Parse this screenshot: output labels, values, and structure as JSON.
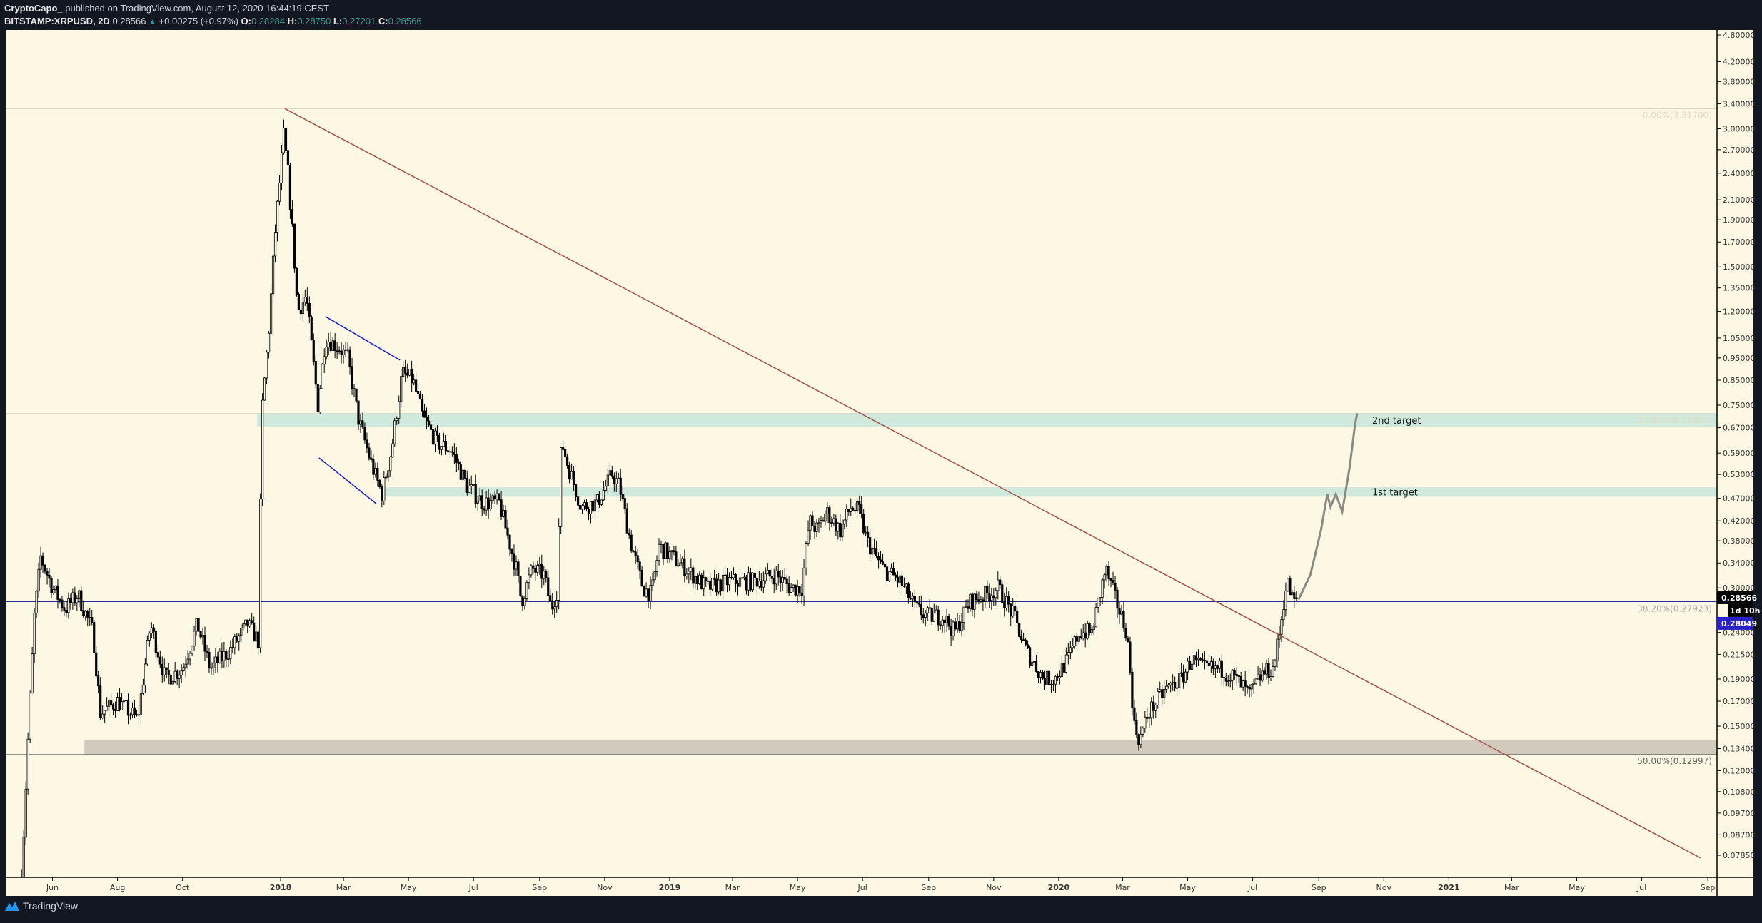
{
  "header": {
    "author": "CryptoCapo_",
    "published": " published on TradingView.com, August 12, 2020 16:44:19 CEST",
    "symbol": "BITSTAMP:XRPUSD, 2D",
    "last": "0.28566",
    "change": "+0.00275 (+0.97%)",
    "o_label": "O:",
    "o": "0.28284",
    "h_label": "H:",
    "h": "0.28750",
    "l_label": "L:",
    "l": "0.27201",
    "c_label": "C:",
    "c": "0.28566",
    "change_icon": "triangle-up-icon"
  },
  "footer": {
    "brand": "TradingView",
    "logo_icon": "tradingview-logo-icon"
  },
  "colors": {
    "background": "#fdf8e4",
    "frame": "#131722",
    "candle_down": "#000000",
    "candle_up_fill": "#fdf8e4",
    "trendline": "#a0524a",
    "channel": "#1a1ad0",
    "support": "#2a2aa0",
    "target_zone": "#cfeadd",
    "support_zone": "#d2cbbd",
    "projection": "#8a8a84",
    "last_price_bg": "#000000",
    "line_price_bg": "#2a22c8"
  },
  "chart_data": {
    "type": "candlestick",
    "interval": "2D",
    "y_scale": "log",
    "ylim": [
      0.072,
      4.9
    ],
    "xlim": [
      "2017-04-27",
      "2021-09-12"
    ],
    "grid": false,
    "price_ticks": [
      4.8,
      4.2,
      3.8,
      3.4,
      3.0,
      2.7,
      2.4,
      2.1,
      1.9,
      1.7,
      1.5,
      1.35,
      1.2,
      1.05,
      0.95,
      0.85,
      0.75,
      0.67,
      0.59,
      0.53,
      0.47,
      0.42,
      0.38,
      0.34,
      0.3,
      0.24,
      0.215,
      0.19,
      0.17,
      0.15,
      0.134,
      0.12,
      0.108,
      0.097,
      0.087,
      0.0785
    ],
    "price_tick_labels": [
      "4.80000",
      "4.20000",
      "3.80000",
      "3.40000",
      "3.00000",
      "2.70000",
      "2.40000",
      "2.10000",
      "1.90000",
      "1.70000",
      "1.50000",
      "1.35000",
      "1.20000",
      "1.05000",
      "0.95000",
      "0.85000",
      "0.75000",
      "0.67000",
      "0.59000",
      "0.53000",
      "0.47000",
      "0.42000",
      "0.38000",
      "0.34000",
      "0.30000",
      "0.24000",
      "0.21500",
      "0.19000",
      "0.17000",
      "0.15000",
      "0.13400",
      "0.12000",
      "0.10800",
      "0.09700",
      "0.08700",
      "0.07850"
    ],
    "time_ticks": [
      {
        "date": "2017-06-01",
        "label": "Jun"
      },
      {
        "date": "2017-08-01",
        "label": "Aug"
      },
      {
        "date": "2017-10-01",
        "label": "Oct"
      },
      {
        "date": "2018-01-01",
        "label": "2018",
        "major": true
      },
      {
        "date": "2018-03-01",
        "label": "Mar"
      },
      {
        "date": "2018-05-01",
        "label": "May"
      },
      {
        "date": "2018-07-01",
        "label": "Jul"
      },
      {
        "date": "2018-09-01",
        "label": "Sep"
      },
      {
        "date": "2018-11-01",
        "label": "Nov"
      },
      {
        "date": "2019-01-01",
        "label": "2019",
        "major": true
      },
      {
        "date": "2019-03-01",
        "label": "Mar"
      },
      {
        "date": "2019-05-01",
        "label": "May"
      },
      {
        "date": "2019-07-01",
        "label": "Jul"
      },
      {
        "date": "2019-09-01",
        "label": "Sep"
      },
      {
        "date": "2019-11-01",
        "label": "Nov"
      },
      {
        "date": "2020-01-01",
        "label": "2020",
        "major": true
      },
      {
        "date": "2020-03-01",
        "label": "Mar"
      },
      {
        "date": "2020-05-01",
        "label": "May"
      },
      {
        "date": "2020-07-01",
        "label": "Jul"
      },
      {
        "date": "2020-09-01",
        "label": "Sep"
      },
      {
        "date": "2020-11-01",
        "label": "Nov"
      },
      {
        "date": "2021-01-01",
        "label": "2021",
        "major": true
      },
      {
        "date": "2021-03-01",
        "label": "Mar"
      },
      {
        "date": "2021-05-01",
        "label": "May"
      },
      {
        "date": "2021-07-01",
        "label": "Jul"
      },
      {
        "date": "2021-09-01",
        "label": "Sep"
      }
    ],
    "price_path": [
      [
        "2017-05-03",
        0.07
      ],
      [
        "2017-05-09",
        0.14
      ],
      [
        "2017-05-15",
        0.26
      ],
      [
        "2017-05-21",
        0.35
      ],
      [
        "2017-06-01",
        0.3
      ],
      [
        "2017-06-13",
        0.27
      ],
      [
        "2017-06-25",
        0.29
      ],
      [
        "2017-07-09",
        0.24
      ],
      [
        "2017-07-16",
        0.16
      ],
      [
        "2017-08-01",
        0.17
      ],
      [
        "2017-08-20",
        0.155
      ],
      [
        "2017-09-01",
        0.25
      ],
      [
        "2017-09-15",
        0.19
      ],
      [
        "2017-10-01",
        0.2
      ],
      [
        "2017-10-15",
        0.25
      ],
      [
        "2017-10-27",
        0.2
      ],
      [
        "2017-11-15",
        0.22
      ],
      [
        "2017-12-01",
        0.25
      ],
      [
        "2017-12-11",
        0.23
      ],
      [
        "2017-12-13",
        0.45
      ],
      [
        "2017-12-15",
        0.75
      ],
      [
        "2017-12-21",
        1.1
      ],
      [
        "2017-12-27",
        1.8
      ],
      [
        "2018-01-04",
        2.9
      ],
      [
        "2018-01-08",
        2.4
      ],
      [
        "2018-01-12",
        1.8
      ],
      [
        "2018-01-17",
        1.2
      ],
      [
        "2018-01-25",
        1.3
      ],
      [
        "2018-02-05",
        0.75
      ],
      [
        "2018-02-12",
        1.05
      ],
      [
        "2018-02-25",
        1.0
      ],
      [
        "2018-03-05",
        0.95
      ],
      [
        "2018-03-15",
        0.7
      ],
      [
        "2018-03-28",
        0.55
      ],
      [
        "2018-04-06",
        0.48
      ],
      [
        "2018-04-15",
        0.6
      ],
      [
        "2018-04-25",
        0.88
      ],
      [
        "2018-05-05",
        0.85
      ],
      [
        "2018-05-15",
        0.7
      ],
      [
        "2018-05-28",
        0.62
      ],
      [
        "2018-06-10",
        0.6
      ],
      [
        "2018-06-25",
        0.5
      ],
      [
        "2018-07-10",
        0.46
      ],
      [
        "2018-07-25",
        0.46
      ],
      [
        "2018-08-10",
        0.33
      ],
      [
        "2018-08-15",
        0.28
      ],
      [
        "2018-08-25",
        0.33
      ],
      [
        "2018-09-05",
        0.32
      ],
      [
        "2018-09-12",
        0.27
      ],
      [
        "2018-09-18",
        0.3
      ],
      [
        "2018-09-20",
        0.55
      ],
      [
        "2018-09-22",
        0.62
      ],
      [
        "2018-09-28",
        0.55
      ],
      [
        "2018-10-10",
        0.45
      ],
      [
        "2018-10-25",
        0.46
      ],
      [
        "2018-11-08",
        0.53
      ],
      [
        "2018-11-15",
        0.5
      ],
      [
        "2018-11-25",
        0.38
      ],
      [
        "2018-12-07",
        0.3
      ],
      [
        "2018-12-15",
        0.29
      ],
      [
        "2018-12-22",
        0.37
      ],
      [
        "2019-01-10",
        0.34
      ],
      [
        "2019-02-05",
        0.3
      ],
      [
        "2019-02-25",
        0.31
      ],
      [
        "2019-03-20",
        0.31
      ],
      [
        "2019-04-10",
        0.32
      ],
      [
        "2019-04-25",
        0.3
      ],
      [
        "2019-05-05",
        0.3
      ],
      [
        "2019-05-12",
        0.42
      ],
      [
        "2019-05-20",
        0.4
      ],
      [
        "2019-05-28",
        0.44
      ],
      [
        "2019-06-10",
        0.4
      ],
      [
        "2019-06-20",
        0.45
      ],
      [
        "2019-06-28",
        0.44
      ],
      [
        "2019-07-05",
        0.38
      ],
      [
        "2019-07-20",
        0.33
      ],
      [
        "2019-08-05",
        0.31
      ],
      [
        "2019-08-20",
        0.27
      ],
      [
        "2019-09-01",
        0.26
      ],
      [
        "2019-09-15",
        0.26
      ],
      [
        "2019-09-25",
        0.24
      ],
      [
        "2019-10-10",
        0.28
      ],
      [
        "2019-10-25",
        0.29
      ],
      [
        "2019-11-05",
        0.3
      ],
      [
        "2019-11-20",
        0.26
      ],
      [
        "2019-12-01",
        0.22
      ],
      [
        "2019-12-18",
        0.19
      ],
      [
        "2019-12-28",
        0.19
      ],
      [
        "2020-01-10",
        0.21
      ],
      [
        "2020-01-20",
        0.24
      ],
      [
        "2020-02-01",
        0.24
      ],
      [
        "2020-02-14",
        0.33
      ],
      [
        "2020-02-24",
        0.28
      ],
      [
        "2020-03-05",
        0.24
      ],
      [
        "2020-03-12",
        0.15
      ],
      [
        "2020-03-17",
        0.14
      ],
      [
        "2020-03-25",
        0.16
      ],
      [
        "2020-04-10",
        0.18
      ],
      [
        "2020-04-25",
        0.19
      ],
      [
        "2020-05-05",
        0.21
      ],
      [
        "2020-05-15",
        0.2
      ],
      [
        "2020-06-01",
        0.2
      ],
      [
        "2020-06-15",
        0.19
      ],
      [
        "2020-06-28",
        0.175
      ],
      [
        "2020-07-10",
        0.195
      ],
      [
        "2020-07-20",
        0.2
      ],
      [
        "2020-07-25",
        0.23
      ],
      [
        "2020-07-31",
        0.29
      ],
      [
        "2020-08-02",
        0.31
      ],
      [
        "2020-08-08",
        0.28
      ],
      [
        "2020-08-12",
        0.28566
      ]
    ],
    "projection_path": [
      [
        "2020-08-13",
        0.283
      ],
      [
        "2020-08-24",
        0.32
      ],
      [
        "2020-09-03",
        0.4
      ],
      [
        "2020-09-09",
        0.48
      ],
      [
        "2020-09-12",
        0.45
      ],
      [
        "2020-09-17",
        0.48
      ],
      [
        "2020-09-23",
        0.44
      ],
      [
        "2020-09-30",
        0.55
      ],
      [
        "2020-10-05",
        0.68
      ],
      [
        "2020-10-07",
        0.72
      ]
    ],
    "trendline": [
      [
        "2018-01-05",
        3.317
      ],
      [
        "2021-08-25",
        0.0775
      ]
    ],
    "channel_upper": [
      [
        "2018-02-12",
        1.17
      ],
      [
        "2018-04-23",
        0.94
      ]
    ],
    "channel_lower": [
      [
        "2018-02-06",
        0.576
      ],
      [
        "2018-04-01",
        0.457
      ]
    ],
    "zones": [
      {
        "name": "2nd target",
        "low": 0.673,
        "high": 0.719,
        "label": "2nd target",
        "start": "2017-12-10"
      },
      {
        "name": "1st target",
        "low": 0.474,
        "high": 0.497,
        "label": "1st target",
        "start": "2018-04-05"
      },
      {
        "name": "support",
        "low": 0.13,
        "high": 0.14,
        "label": "",
        "start": "2017-07-01"
      }
    ],
    "fib_levels": [
      {
        "price": 3.317,
        "label": "0.00%(3.31700)"
      },
      {
        "price": 0.71907,
        "label": "23.60%(0.71907)"
      },
      {
        "price": 0.27923,
        "label": "38.20%(0.27923)"
      },
      {
        "price": 0.12997,
        "label": "50.00%(0.12997)"
      }
    ],
    "support_line": 0.28049,
    "price_labels": {
      "last": "0.28566",
      "countdown": "1d 10h",
      "line": "0.28049"
    }
  }
}
